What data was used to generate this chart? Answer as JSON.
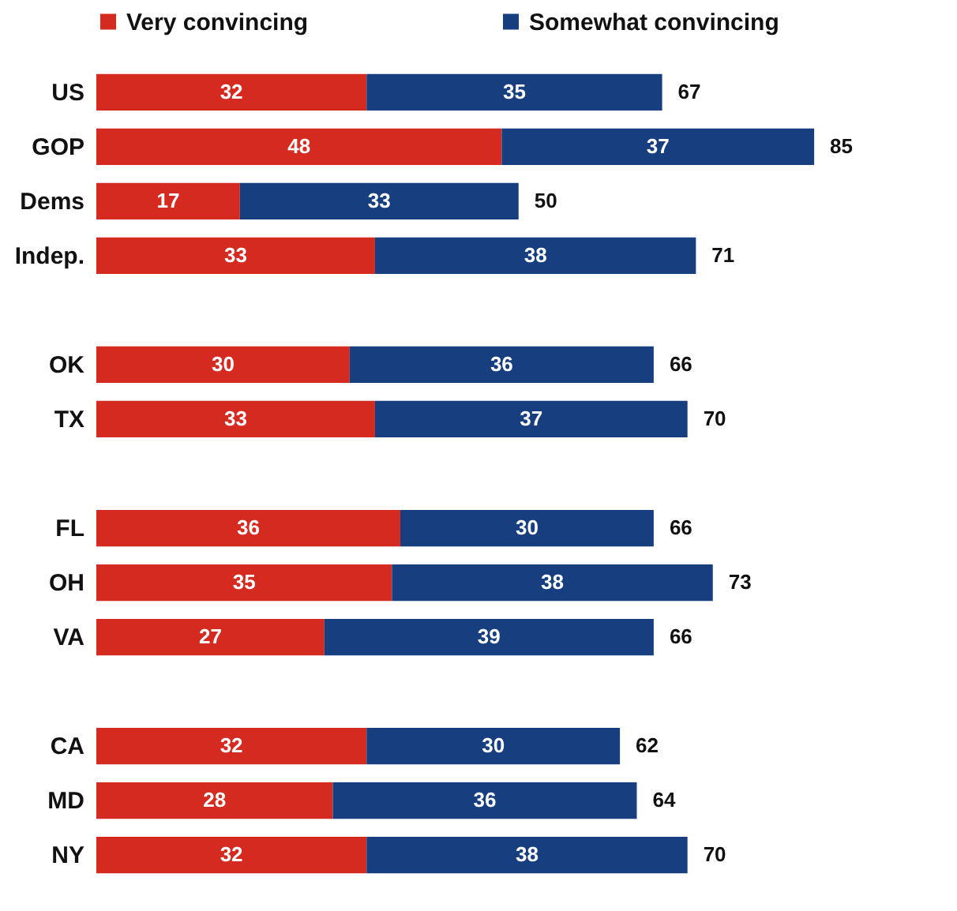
{
  "chart_data": {
    "type": "bar",
    "orientation": "horizontal",
    "stacked": true,
    "data_labels": true,
    "legend": "top",
    "tick_labels": "y",
    "categories": [
      "US",
      "GOP",
      "Dems",
      "Indep.",
      null,
      "OK",
      "TX",
      null,
      "FL",
      "OH",
      "VA",
      null,
      "CA",
      "MD",
      "NY"
    ],
    "series": [
      {
        "name": "Very convincing",
        "color": "#d42a20",
        "values": [
          32,
          48,
          17,
          33,
          null,
          30,
          33,
          null,
          36,
          35,
          27,
          null,
          32,
          28,
          32
        ]
      },
      {
        "name": "Somewhat convincing",
        "color": "#173f80",
        "values": [
          35,
          37,
          33,
          38,
          null,
          36,
          37,
          null,
          30,
          38,
          39,
          null,
          30,
          36,
          38
        ]
      }
    ],
    "totals": [
      "67",
      "85",
      "50",
      "71",
      null,
      "66",
      "70",
      null,
      "66",
      "73",
      "66",
      null,
      "62",
      "64",
      "70"
    ]
  }
}
